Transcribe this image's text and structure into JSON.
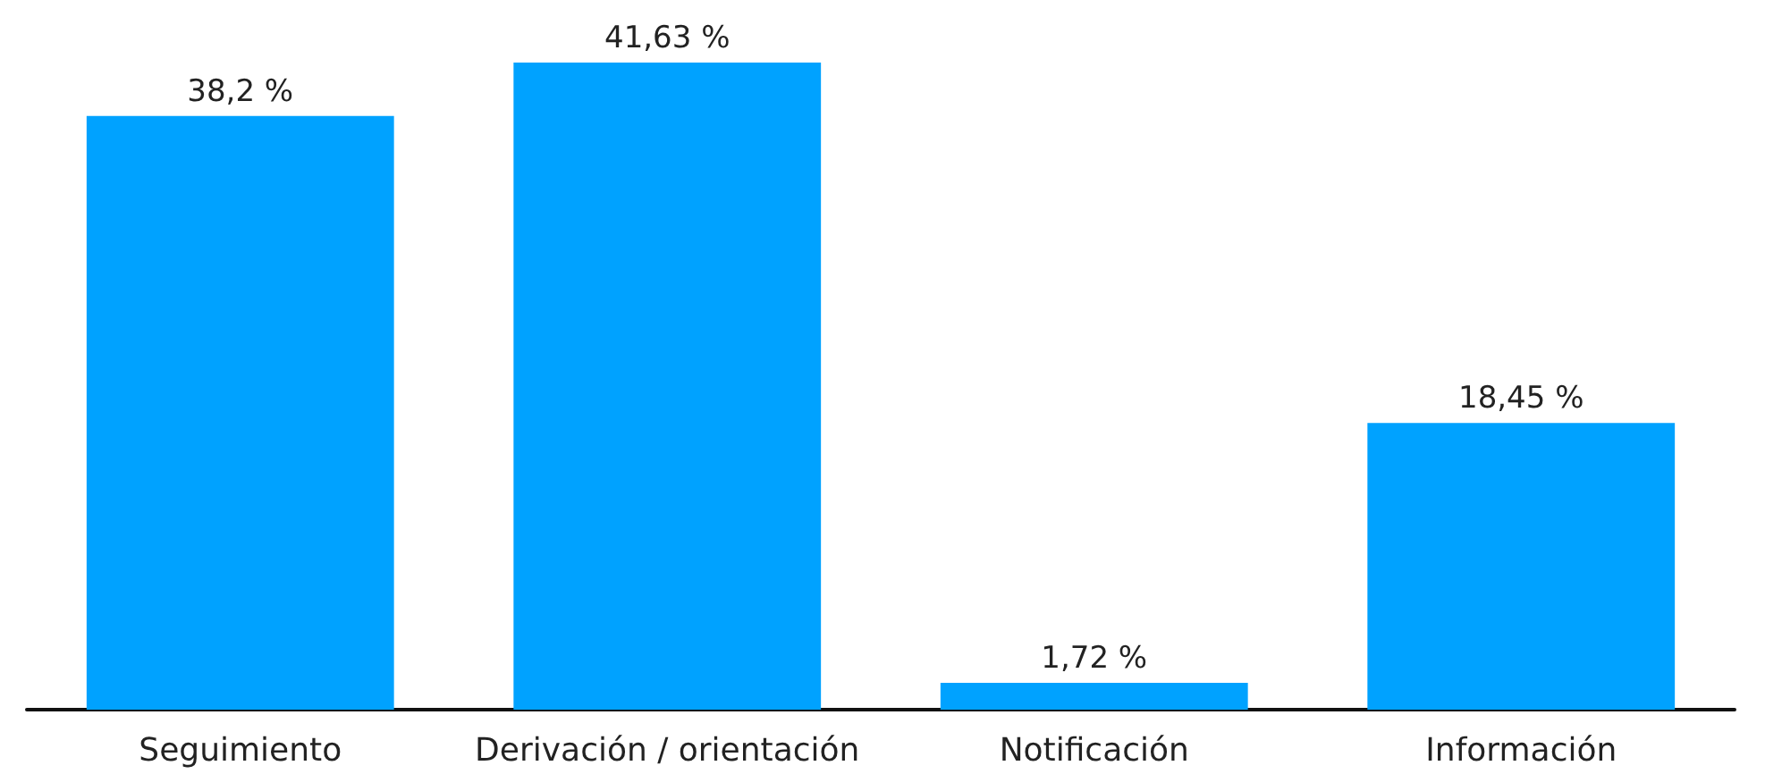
{
  "chart_data": {
    "type": "bar",
    "categories": [
      "Seguimiento",
      "Derivación / orientación",
      "Notificación",
      "Información"
    ],
    "values": [
      38.2,
      41.63,
      1.72,
      18.45
    ],
    "value_labels": [
      "38,2 %",
      "41,63 %",
      "1,72 %",
      "18,45 %"
    ],
    "color": "#00a2ff",
    "grid": false,
    "tick_labels": "x"
  }
}
